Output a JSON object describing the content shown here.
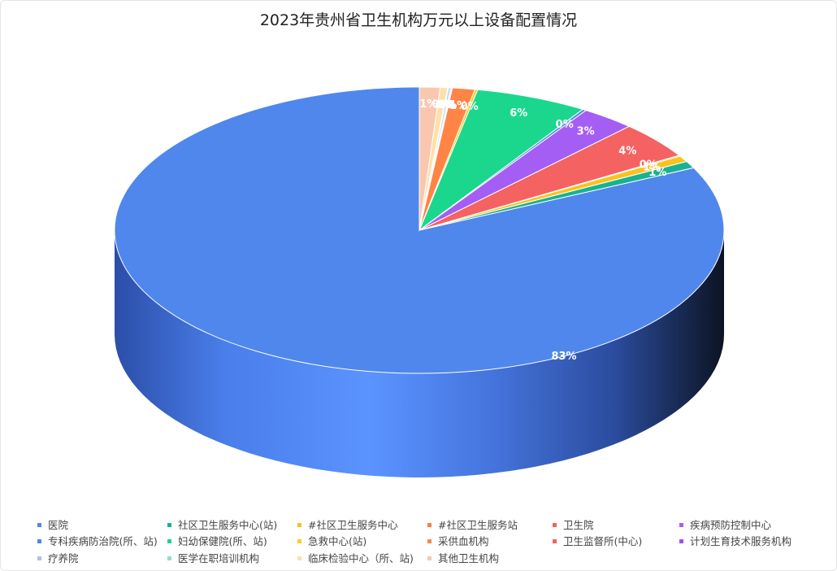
{
  "chart_data": {
    "type": "pie",
    "title": "2023年贵州省卫生机构万元以上设备配置情况",
    "legend_position": "bottom",
    "categories": [
      "医院",
      "社区卫生服务中心(站)",
      "#社区卫生服务中心",
      "#社区卫生服务站",
      "卫生院",
      "疾病预防控制中心",
      "专科疾病防治院(所、站)",
      "妇幼保健院(所、站)",
      "急救中心(站)",
      "采供血机构",
      "卫生监督所(中心)",
      "计划生育技术服务机构",
      "疗养院",
      "医学在职培训机构",
      "临床检验中心（所、站)",
      "其他卫生机构"
    ],
    "values": [
      83.0,
      0.8,
      0.7,
      0.1,
      4.2,
      2.9,
      0.2,
      6.0,
      0.15,
      1.2,
      0.05,
      0.05,
      0.1,
      0.05,
      0.4,
      1.1
    ],
    "data_labels": [
      "83%",
      "1%",
      "1%",
      "0%",
      "4%",
      "3%",
      "0%",
      "6%",
      "0%",
      "1%",
      "0%",
      "0%",
      "0%",
      "0%",
      "0%",
      "1%"
    ],
    "colors": [
      "#5087ec",
      "#18b291",
      "#f8c31c",
      "#f6813e",
      "#f56262",
      "#a45ef4",
      "#4f85f0",
      "#1bd78e",
      "#ffcd1e",
      "#ff8445",
      "#ff5e5e",
      "#9b4eff",
      "#a9bff8",
      "#98dbc2",
      "#ffe0a6",
      "#f9c7b0"
    ]
  }
}
